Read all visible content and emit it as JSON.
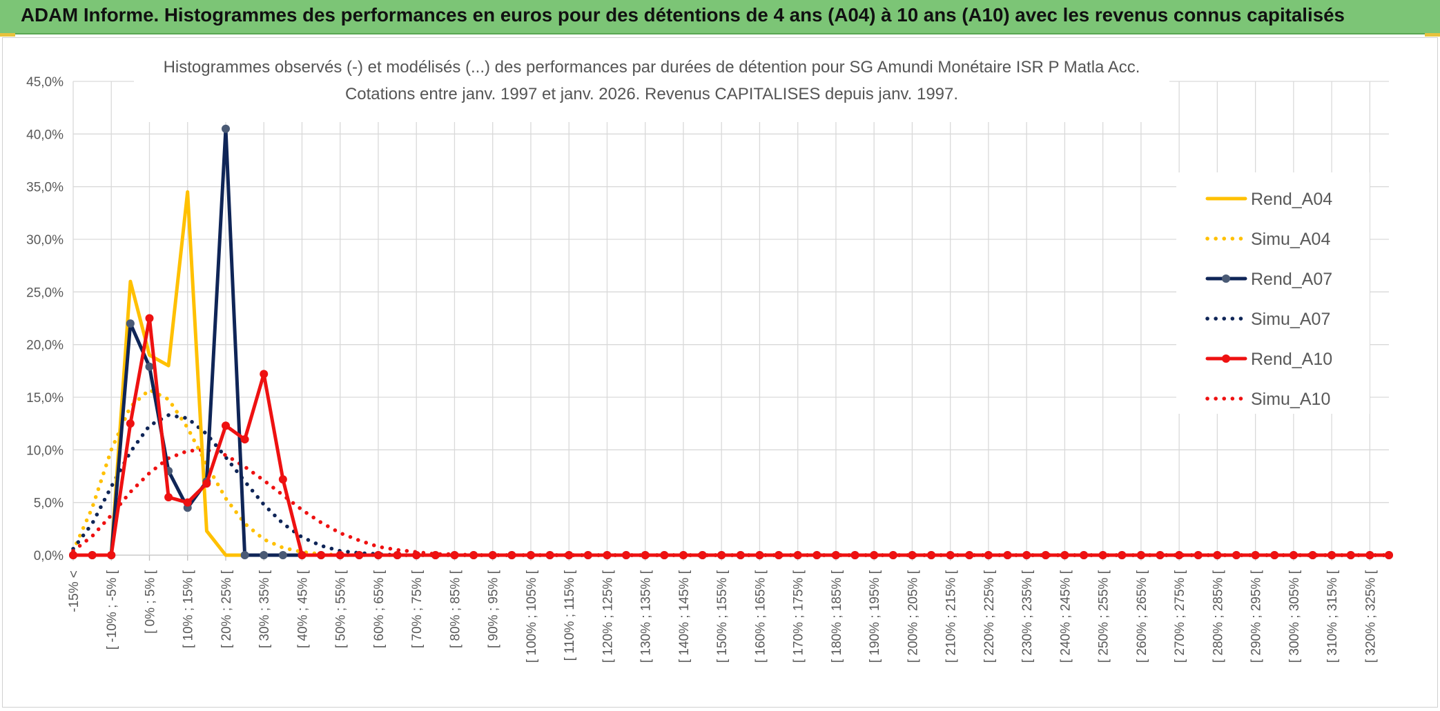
{
  "header": {
    "title": "ADAM Informe. Histogrammes des performances en euros pour des détentions de 4 ans (A04) à 10 ans (A10) avec les revenus connus capitalisés"
  },
  "colors": {
    "banner": "#7cc576",
    "Rend_A04": "#ffc000",
    "Rend_A07": "#0f2557",
    "Rend_A10": "#ee1111",
    "grid": "#d9d9d9"
  },
  "chart_data": {
    "type": "line",
    "title": "Histogrammes observés (-) et modélisés (...) des performances par durées de détention pour SG Amundi Monétaire ISR P Matla Acc.",
    "subtitle": "Cotations entre janv. 1997 et janv. 2026. Revenus CAPITALISES depuis janv. 1997.",
    "xlabel": "",
    "ylabel": "",
    "ylim": [
      0,
      45
    ],
    "yticks": [
      "0,0%",
      "5,0%",
      "10,0%",
      "15,0%",
      "20,0%",
      "25,0%",
      "30,0%",
      "35,0%",
      "40,0%",
      "45,0%"
    ],
    "grid": true,
    "legend_position": "top-right",
    "x_labels": [
      "-15% <",
      "[ -10% ; -5% [",
      "[ 0% ; 5% [",
      "[ 10% ; 15% [",
      "[ 20% ; 25% [",
      "[ 30% ; 35% [",
      "[ 40% ; 45% [",
      "[ 50% ; 55% [",
      "[ 60% ; 65% [",
      "[ 70% ; 75% [",
      "[ 80% ; 85% [",
      "[ 90% ; 95% [",
      "[ 100% ; 105% [",
      "[ 110% ; 115% [",
      "[ 120% ; 125% [",
      "[ 130% ; 135% [",
      "[ 140% ; 145% [",
      "[ 150% ; 155% [",
      "[ 160% ; 165% [",
      "[ 170% ; 175% [",
      "[ 180% ; 185% [",
      "[ 190% ; 195% [",
      "[ 200% ; 205% [",
      "[ 210% ; 215% [",
      "[ 220% ; 225% [",
      "[ 230% ; 235% [",
      "[ 240% ; 245% [",
      "[ 250% ; 255% [",
      "[ 260% ; 265% [",
      "[ 270% ; 275% [",
      "[ 280% ; 285% [",
      "[ 290% ; 295% [",
      "[ 300% ; 305% [",
      "[ 310% ; 315% [",
      "[ 320% ; 325% ["
    ],
    "series": [
      {
        "name": "Rend_A04",
        "style": "solid",
        "color": "#ffc000",
        "markers": false,
        "values": [
          0,
          0,
          0,
          26.0,
          19.0,
          18.0,
          34.5,
          2.3,
          0,
          0,
          0,
          0,
          0,
          0,
          0,
          0,
          0,
          0,
          0,
          0,
          0,
          0,
          0,
          0,
          0,
          0,
          0,
          0,
          0,
          0,
          0,
          0,
          0,
          0,
          0,
          0,
          0,
          0,
          0,
          0,
          0,
          0,
          0,
          0,
          0,
          0,
          0,
          0,
          0,
          0,
          0,
          0,
          0,
          0,
          0,
          0,
          0,
          0,
          0,
          0,
          0,
          0,
          0,
          0,
          0,
          0,
          0,
          0,
          0,
          0
        ]
      },
      {
        "name": "Simu_A04",
        "style": "dotted",
        "color": "#ffc000",
        "markers": false,
        "values": [
          0.4,
          4.5,
          10.0,
          14.1,
          15.7,
          14.8,
          12.1,
          8.6,
          5.4,
          3.0,
          1.5,
          0.7,
          0.3,
          0.1,
          0,
          0,
          0,
          0,
          0,
          0,
          0,
          0,
          0,
          0,
          0,
          0,
          0,
          0,
          0,
          0,
          0,
          0,
          0,
          0,
          0,
          0,
          0,
          0,
          0,
          0,
          0,
          0,
          0,
          0,
          0,
          0,
          0,
          0,
          0,
          0,
          0,
          0,
          0,
          0,
          0,
          0,
          0,
          0,
          0,
          0,
          0,
          0,
          0,
          0,
          0,
          0,
          0,
          0,
          0,
          0
        ]
      },
      {
        "name": "Rend_A07",
        "style": "solid",
        "color": "#0f2557",
        "markers": true,
        "marker_color": "#4a5a75",
        "values": [
          0,
          0,
          0,
          22.0,
          17.9,
          8.0,
          4.5,
          7.0,
          40.5,
          0,
          0,
          0,
          0,
          0,
          0,
          0,
          0,
          0,
          0,
          0,
          0,
          0,
          0,
          0,
          0,
          0,
          0,
          0,
          0,
          0,
          0,
          0,
          0,
          0,
          0,
          0,
          0,
          0,
          0,
          0,
          0,
          0,
          0,
          0,
          0,
          0,
          0,
          0,
          0,
          0,
          0,
          0,
          0,
          0,
          0,
          0,
          0,
          0,
          0,
          0,
          0,
          0,
          0,
          0,
          0,
          0,
          0,
          0,
          0,
          0
        ]
      },
      {
        "name": "Simu_A07",
        "style": "dotted",
        "color": "#0f2557",
        "markers": false,
        "values": [
          0.6,
          3.0,
          6.5,
          9.8,
          12.3,
          13.3,
          13.0,
          11.5,
          9.3,
          7.0,
          4.8,
          3.0,
          1.7,
          0.9,
          0.4,
          0.2,
          0.1,
          0,
          0,
          0,
          0,
          0,
          0,
          0,
          0,
          0,
          0,
          0,
          0,
          0,
          0,
          0,
          0,
          0,
          0,
          0,
          0,
          0,
          0,
          0,
          0,
          0,
          0,
          0,
          0,
          0,
          0,
          0,
          0,
          0,
          0,
          0,
          0,
          0,
          0,
          0,
          0,
          0,
          0,
          0,
          0,
          0,
          0,
          0,
          0,
          0,
          0,
          0,
          0,
          0
        ]
      },
      {
        "name": "Rend_A10",
        "style": "solid",
        "color": "#ee1111",
        "markers": true,
        "marker_color": "#ee1111",
        "values": [
          0,
          0,
          0,
          12.5,
          22.5,
          5.5,
          5.0,
          6.8,
          12.3,
          11.0,
          17.2,
          7.2,
          0,
          0,
          0,
          0,
          0,
          0,
          0,
          0,
          0,
          0,
          0,
          0,
          0,
          0,
          0,
          0,
          0,
          0,
          0,
          0,
          0,
          0,
          0,
          0,
          0,
          0,
          0,
          0,
          0,
          0,
          0,
          0,
          0,
          0,
          0,
          0,
          0,
          0,
          0,
          0,
          0,
          0,
          0,
          0,
          0,
          0,
          0,
          0,
          0,
          0,
          0,
          0,
          0,
          0,
          0,
          0,
          0,
          0
        ]
      },
      {
        "name": "Simu_A10",
        "style": "dotted",
        "color": "#ee1111",
        "markers": false,
        "values": [
          0.4,
          1.8,
          3.8,
          6.0,
          7.8,
          9.2,
          9.9,
          10.0,
          9.5,
          8.4,
          7.1,
          5.7,
          4.3,
          3.1,
          2.1,
          1.4,
          0.8,
          0.5,
          0.3,
          0.1,
          0.1,
          0,
          0,
          0,
          0,
          0,
          0,
          0,
          0,
          0,
          0,
          0,
          0,
          0,
          0,
          0,
          0,
          0,
          0,
          0,
          0,
          0,
          0,
          0,
          0,
          0,
          0,
          0,
          0,
          0,
          0,
          0,
          0,
          0,
          0,
          0,
          0,
          0,
          0,
          0,
          0,
          0,
          0,
          0,
          0,
          0,
          0,
          0,
          0,
          0
        ]
      }
    ]
  }
}
